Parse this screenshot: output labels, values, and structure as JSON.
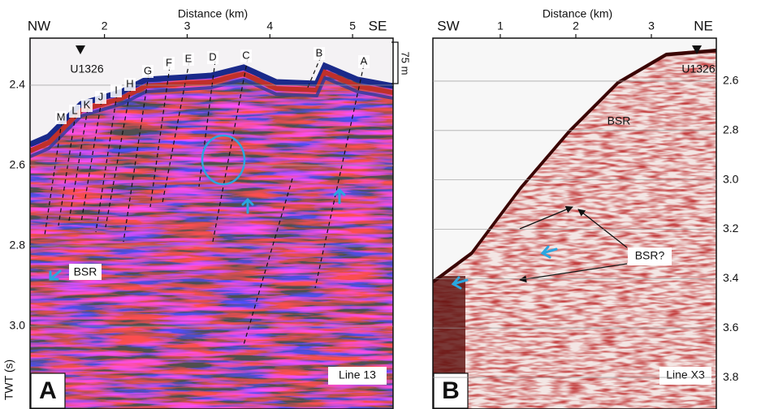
{
  "panels": [
    {
      "letter": "A",
      "line": "Line 13",
      "axis_title": "Distance (km)",
      "left_dir": "NW",
      "right_dir": "SE",
      "well": "U1326",
      "scale_bar": "75 m",
      "y_title": "TWT (s)",
      "xlim": [
        1.1,
        5.49
      ],
      "ylim": [
        2.283,
        3.206
      ],
      "xticks": [
        2,
        3,
        4,
        5
      ],
      "yticks": [
        2.4,
        2.6,
        2.8,
        {
          "value": 3,
          "label": "3.0"
        }
      ],
      "faults": [
        "A",
        "B",
        "C",
        "D",
        "E",
        "F",
        "G",
        "H",
        "I",
        "J",
        "K",
        "L",
        "M"
      ],
      "bsr": "BSR"
    },
    {
      "letter": "B",
      "line": "Line X3",
      "axis_title": "Distance (km)",
      "left_dir": "SW",
      "right_dir": "NE",
      "well": "U1326",
      "xlim": [
        0.108,
        3.86
      ],
      "ylim": [
        2.426,
        3.928
      ],
      "xticks": [
        1,
        2,
        3
      ],
      "yticks": [
        2.6,
        2.8,
        {
          "value": 3,
          "label": "3.0"
        },
        3.2,
        3.4,
        3.6,
        3.8
      ],
      "bsr": "BSR",
      "bsr_query": "BSR?"
    }
  ]
}
